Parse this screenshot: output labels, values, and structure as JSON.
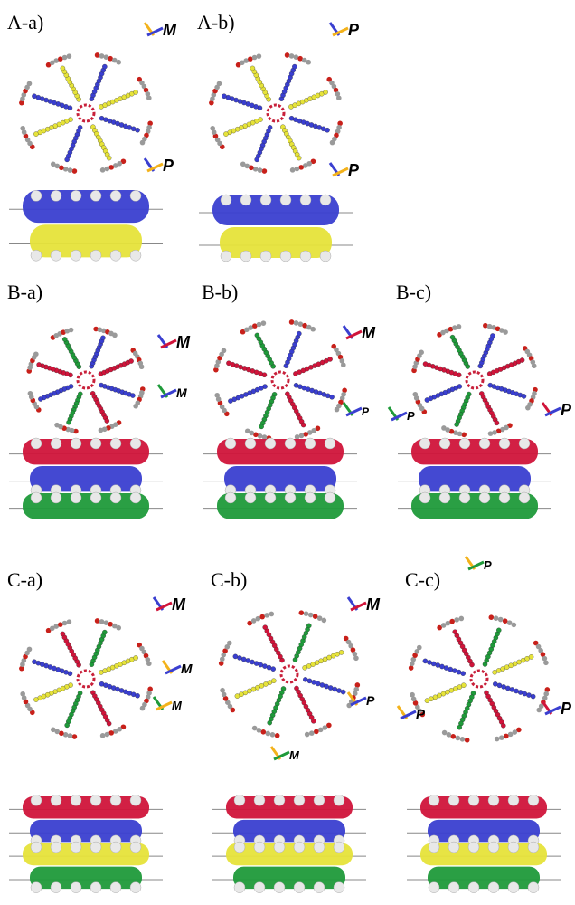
{
  "panels": [
    {
      "label": "A-a)",
      "helicity": [
        "M",
        "P"
      ]
    },
    {
      "label": "A-b)",
      "helicity": [
        "P",
        "P"
      ]
    },
    {
      "label": "B-a)",
      "helicity": [
        "M",
        "M"
      ]
    },
    {
      "label": "B-b)",
      "helicity": [
        "M",
        "P"
      ]
    },
    {
      "label": "B-c)",
      "helicity": [
        "P",
        "P"
      ]
    },
    {
      "label": "C-a)",
      "helicity": [
        "M",
        "M",
        "M"
      ]
    },
    {
      "label": "C-b)",
      "helicity": [
        "M",
        "P",
        "M"
      ]
    },
    {
      "label": "C-c)",
      "helicity": [
        "P",
        "P",
        "P"
      ]
    }
  ]
}
